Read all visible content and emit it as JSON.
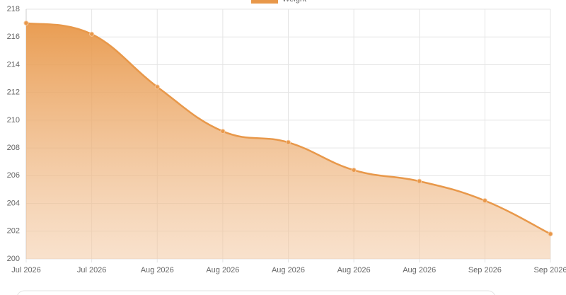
{
  "chart_data": {
    "type": "line",
    "categories": [
      "Jul 2026",
      "Jul 2026",
      "Aug 2026",
      "Aug 2026",
      "Aug 2026",
      "Aug 2026",
      "Aug 2026",
      "Sep 2026",
      "Sep 2026"
    ],
    "series": [
      {
        "name": "Weight",
        "color": "#e8984a",
        "values": [
          217,
          216.2,
          212.4,
          209.2,
          208.4,
          206.4,
          205.6,
          204.2,
          201.8
        ]
      }
    ],
    "ylim": [
      200,
      218
    ],
    "yticks": [
      200,
      202,
      204,
      206,
      208,
      210,
      212,
      214,
      216,
      218
    ],
    "grid": true,
    "fill": true,
    "legend": "top"
  }
}
